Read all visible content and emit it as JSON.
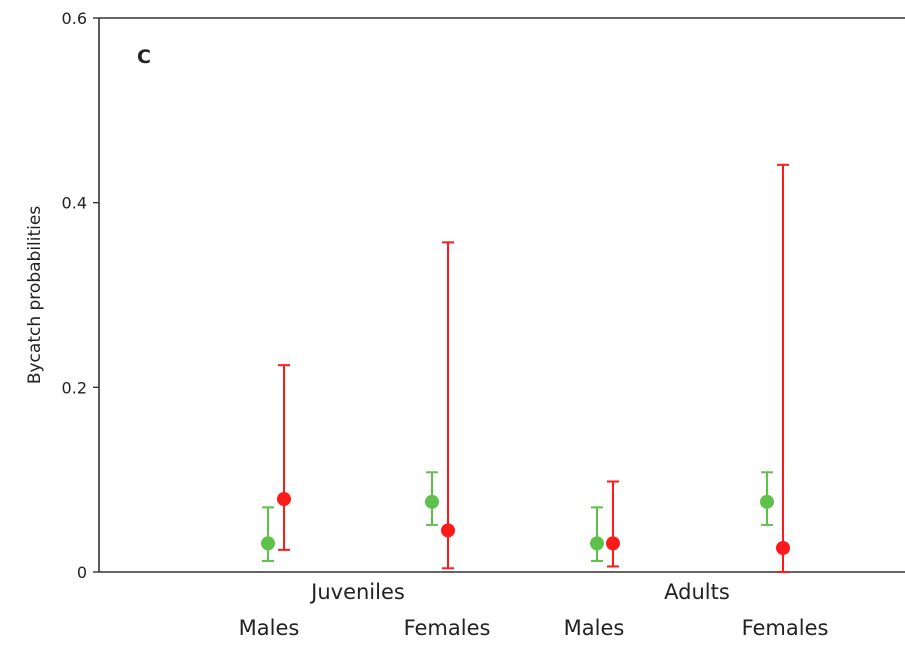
{
  "chart_data": {
    "type": "scatter",
    "panel_label": "C",
    "ylabel": "Bycatch probabilities",
    "xlabel": "",
    "ylim": [
      0,
      0.6
    ],
    "yticks": [
      0,
      0.2,
      0.4,
      0.6
    ],
    "ytick_labels": [
      "0",
      "0.2",
      "0.4",
      "0.6"
    ],
    "groups": [
      "Juveniles",
      "Adults"
    ],
    "categories": [
      "Males",
      "Females",
      "Males",
      "Females"
    ],
    "series": [
      {
        "color": "#5ec24a",
        "values": [
          0.031,
          0.076,
          0.031,
          0.076
        ],
        "lower": [
          0.012,
          0.051,
          0.012,
          0.051
        ],
        "upper": [
          0.07,
          0.108,
          0.07,
          0.108
        ]
      },
      {
        "color": "#ff1a1a",
        "values": [
          0.079,
          0.045,
          0.031,
          0.026
        ],
        "lower": [
          0.024,
          0.004,
          0.006,
          0.0
        ],
        "upper": [
          0.224,
          0.357,
          0.098,
          0.441
        ]
      }
    ],
    "grid": false,
    "legend": "none"
  }
}
